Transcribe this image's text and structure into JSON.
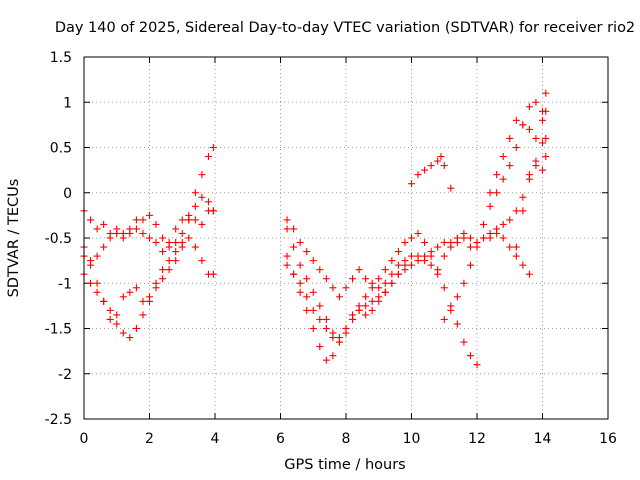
{
  "chart_data": {
    "type": "scatter",
    "title": "Day 140 of 2025, Sidereal Day-to-day VTEC variation (SDTVAR) for receiver rio2",
    "xlabel": "GPS time / hours",
    "ylabel": "SDTVAR / TECUs",
    "xlim": [
      0,
      16
    ],
    "ylim": [
      -2.5,
      1.5
    ],
    "xticks": [
      0,
      2,
      4,
      6,
      8,
      10,
      12,
      14,
      16
    ],
    "yticks": [
      -2.5,
      -2,
      -1.5,
      -1,
      -0.5,
      0,
      0.5,
      1,
      1.5
    ],
    "xtick_labels": [
      "0",
      "2",
      "4",
      "6",
      "8",
      "10",
      "12",
      "14",
      "16"
    ],
    "ytick_labels": [
      "-2.5",
      "-2",
      "-1.5",
      "-1",
      "-0.5",
      "0",
      "0.5",
      "1",
      "1.5"
    ],
    "grid": true,
    "marker": "plus",
    "color": "#ff0000",
    "series": [
      {
        "x": [
          0.0,
          0.2,
          0.4,
          0.6,
          0.8,
          1.0,
          1.2,
          1.4,
          1.6,
          1.8,
          2.0,
          2.2,
          2.4,
          2.6,
          2.8,
          3.0,
          3.2,
          3.4,
          3.6,
          3.8,
          3.95
        ],
        "y": [
          -0.2,
          -0.3,
          -0.4,
          -0.35,
          -0.45,
          -0.4,
          -0.45,
          -0.4,
          -0.3,
          -0.3,
          -0.25,
          -0.35,
          -0.5,
          -0.55,
          -0.4,
          -0.3,
          -0.25,
          -0.3,
          -0.35,
          -0.2,
          -0.2
        ]
      },
      {
        "x": [
          0.0,
          0.2,
          0.4,
          0.6,
          0.8,
          1.0,
          1.2,
          1.4,
          1.6,
          1.8,
          2.0,
          2.2,
          2.4,
          2.6,
          2.8,
          3.0,
          3.2,
          3.4,
          3.6,
          3.8,
          3.95
        ],
        "y": [
          -0.7,
          -0.75,
          -0.7,
          -0.6,
          -0.5,
          -0.45,
          -0.5,
          -0.45,
          -0.4,
          -0.45,
          -0.5,
          -0.55,
          -0.65,
          -0.6,
          -0.55,
          -0.45,
          -0.3,
          -0.15,
          -0.05,
          -0.1,
          -0.2
        ]
      },
      {
        "x": [
          0.0,
          0.2,
          0.4,
          0.6,
          0.8,
          1.0,
          1.2,
          1.4,
          1.6,
          1.8,
          2.0,
          2.2,
          2.4,
          2.6,
          2.8,
          3.0,
          3.2,
          3.4,
          3.6,
          3.8,
          3.95
        ],
        "y": [
          -0.6,
          -0.8,
          -1.0,
          -1.2,
          -1.4,
          -1.35,
          -1.15,
          -1.1,
          -1.05,
          -1.2,
          -1.15,
          -1.0,
          -0.85,
          -0.75,
          -0.65,
          -0.55,
          -0.3,
          0.0,
          0.2,
          0.4,
          0.5
        ]
      },
      {
        "x": [
          0.0,
          0.2,
          0.4,
          0.6,
          0.8,
          1.0,
          1.2,
          1.4,
          1.6,
          1.8,
          2.0,
          2.2,
          2.4,
          2.6,
          2.8,
          3.0,
          3.2,
          3.4,
          3.6,
          3.8,
          3.95
        ],
        "y": [
          -0.9,
          -1.0,
          -1.1,
          -1.2,
          -1.3,
          -1.45,
          -1.55,
          -1.6,
          -1.5,
          -1.35,
          -1.2,
          -1.05,
          -0.95,
          -0.85,
          -0.75,
          -0.6,
          -0.5,
          -0.6,
          -0.75,
          -0.9,
          -0.9
        ]
      },
      {
        "x": [
          6.2,
          6.4,
          6.6,
          6.8,
          7.0,
          7.2,
          7.4,
          7.6,
          7.8,
          8.0,
          8.2,
          8.4,
          8.6,
          8.8,
          9.0,
          9.2,
          9.4,
          9.6,
          9.8,
          10.0,
          10.2,
          10.4,
          10.6,
          10.8,
          11.0,
          11.2,
          11.4,
          11.6,
          11.8,
          12.0,
          12.2,
          12.4,
          12.6,
          12.8,
          13.0,
          13.2,
          13.4,
          13.6
        ],
        "y": [
          -0.3,
          -0.4,
          -0.55,
          -0.65,
          -0.75,
          -0.85,
          -0.95,
          -1.05,
          -1.15,
          -1.05,
          -0.95,
          -0.85,
          -0.95,
          -1.0,
          -1.05,
          -1.0,
          -0.9,
          -0.8,
          -0.75,
          -0.7,
          -0.7,
          -0.75,
          -0.8,
          -0.85,
          -0.7,
          -0.6,
          -0.55,
          -0.5,
          -0.6,
          -0.55,
          -0.5,
          -0.5,
          -0.45,
          -0.5,
          -0.6,
          -0.7,
          -0.8,
          -0.9
        ]
      },
      {
        "x": [
          6.2,
          6.4,
          6.6,
          6.8,
          7.0,
          7.2,
          7.4,
          7.6,
          7.8,
          8.0,
          8.2,
          8.4,
          8.6,
          8.8,
          9.0,
          9.2,
          9.4,
          9.6,
          9.8,
          10.0,
          10.2,
          10.4,
          10.6,
          10.8,
          11.0,
          11.2,
          11.4,
          11.6,
          11.8,
          12.0
        ],
        "y": [
          -0.4,
          -0.6,
          -0.8,
          -0.95,
          -1.1,
          -1.25,
          -1.4,
          -1.55,
          -1.6,
          -1.5,
          -1.35,
          -1.25,
          -1.15,
          -1.05,
          -0.95,
          -0.85,
          -0.75,
          -0.65,
          -0.55,
          -0.5,
          -0.45,
          -0.55,
          -0.7,
          -0.9,
          -1.05,
          -1.25,
          -1.45,
          -1.65,
          -1.8,
          -1.9
        ]
      },
      {
        "x": [
          6.2,
          6.4,
          6.6,
          6.8,
          7.0,
          7.2,
          7.4,
          7.6,
          7.8,
          8.0,
          8.2,
          8.4,
          8.6,
          8.8,
          9.0,
          9.2,
          9.4,
          9.6,
          9.8,
          10.0,
          10.2,
          10.4,
          10.6,
          10.8,
          11.0,
          11.2,
          11.4,
          11.6,
          11.8,
          12.0,
          12.2,
          12.4,
          12.6,
          12.8,
          13.0,
          13.2,
          13.4,
          13.6,
          13.8,
          14.0,
          14.1
        ],
        "y": [
          -0.7,
          -0.9,
          -1.1,
          -1.3,
          -1.5,
          -1.7,
          -1.85,
          -1.8,
          -1.65,
          -1.5,
          -1.4,
          -1.3,
          -1.25,
          -1.2,
          -1.15,
          -1.1,
          -1.0,
          -0.9,
          -0.85,
          -0.8,
          -0.75,
          -0.7,
          -0.65,
          -0.6,
          -0.55,
          -0.55,
          -0.5,
          -0.45,
          -0.5,
          -0.55,
          -0.5,
          -0.45,
          -0.4,
          -0.35,
          -0.3,
          -0.2,
          -0.05,
          0.15,
          0.35,
          0.55,
          0.6
        ]
      },
      {
        "x": [
          6.2,
          6.4,
          6.6,
          6.8,
          7.0,
          7.2,
          7.4,
          7.6,
          7.8,
          8.0,
          8.2,
          8.4,
          8.6,
          8.8,
          9.0,
          9.2,
          9.4,
          9.6,
          9.8
        ],
        "y": [
          -0.8,
          -0.9,
          -1.0,
          -1.15,
          -1.3,
          -1.4,
          -1.5,
          -1.6,
          -1.65,
          -1.55,
          -1.4,
          -1.3,
          -1.35,
          -1.3,
          -1.2,
          -1.1,
          -1.0,
          -0.9,
          -0.8
        ]
      },
      {
        "x": [
          10.0,
          10.2,
          10.4,
          10.6,
          10.8,
          10.9,
          11.0,
          11.2
        ],
        "y": [
          0.1,
          0.2,
          0.25,
          0.3,
          0.35,
          0.4,
          0.3,
          0.05
        ]
      },
      {
        "x": [
          11.0,
          11.2,
          11.4,
          11.6,
          11.8,
          12.0,
          12.2,
          12.4,
          12.6,
          12.8,
          13.0,
          13.2,
          13.4,
          13.6,
          13.8,
          14.0,
          14.1
        ],
        "y": [
          -1.4,
          -1.3,
          -1.15,
          -1.0,
          -0.8,
          -0.6,
          -0.35,
          -0.15,
          0.0,
          0.15,
          0.3,
          0.5,
          0.75,
          0.7,
          0.6,
          0.8,
          0.9
        ]
      },
      {
        "x": [
          12.4,
          12.6,
          12.8,
          13.0,
          13.2,
          13.4,
          13.6,
          13.8,
          14.0,
          14.1
        ],
        "y": [
          0.0,
          0.2,
          0.4,
          0.6,
          0.8,
          0.75,
          0.95,
          1.0,
          0.9,
          1.1
        ]
      },
      {
        "x": [
          13.2,
          13.4,
          13.6,
          13.8,
          14.0,
          14.1
        ],
        "y": [
          -0.6,
          -0.2,
          0.2,
          0.3,
          0.25,
          0.4
        ]
      }
    ]
  }
}
